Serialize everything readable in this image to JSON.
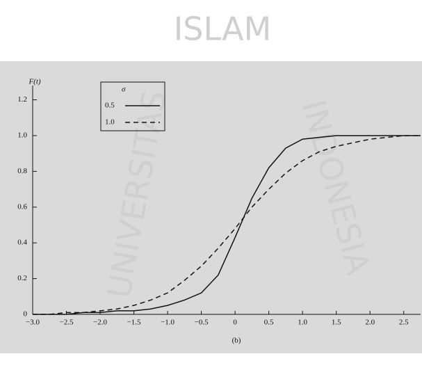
{
  "chart_data": {
    "type": "line",
    "y_label": "F(t)",
    "x_label": "(b)",
    "legend_title": "σ",
    "legend": "upper-left",
    "watermark": [
      "ISLAM",
      "UNIVERSITAS",
      "INDONESIA"
    ],
    "x": [
      -3,
      -2.75,
      -2.5,
      -2.25,
      -2,
      -1.75,
      -1.5,
      -1.25,
      -1,
      -0.75,
      -0.5,
      -0.25,
      0,
      0.25,
      0.5,
      0.75,
      1,
      1.25,
      1.5,
      1.75,
      2,
      2.25,
      2.5,
      2.75
    ],
    "series": [
      {
        "name": "0.5",
        "color": "#111111",
        "dash": "solid",
        "values": [
          0,
          0,
          0,
          0.01,
          0.01,
          0.02,
          0.02,
          0.03,
          0.05,
          0.08,
          0.12,
          0.22,
          0.43,
          0.65,
          0.82,
          0.93,
          0.98,
          0.99,
          1,
          1,
          1,
          1,
          1,
          1
        ]
      },
      {
        "name": "1.0",
        "color": "#111111",
        "dash": "dashed",
        "values": [
          0,
          0,
          0.01,
          0.01,
          0.02,
          0.03,
          0.05,
          0.08,
          0.12,
          0.19,
          0.27,
          0.37,
          0.48,
          0.6,
          0.7,
          0.79,
          0.86,
          0.91,
          0.94,
          0.96,
          0.98,
          0.99,
          1,
          1
        ]
      }
    ],
    "xlim": [
      -3,
      2.75
    ],
    "ylim": [
      0,
      1.28
    ],
    "xticks": [
      {
        "value": -3,
        "label": "−3.0"
      },
      {
        "value": -2.5,
        "label": "−2.5"
      },
      {
        "value": -2,
        "label": "−2.0"
      },
      {
        "value": -1.5,
        "label": "−1.5"
      },
      {
        "value": -1,
        "label": "−1.0"
      },
      {
        "value": -0.5,
        "label": "−0.5"
      },
      0,
      0.5,
      {
        "value": 1,
        "label": "1.0"
      },
      1.5,
      {
        "value": 2,
        "label": "2.0"
      },
      2.5
    ],
    "yticks": [
      0,
      0.2,
      0.4,
      0.6,
      0.8,
      {
        "value": 1,
        "label": "1.0"
      },
      1.2
    ],
    "grid": false
  }
}
